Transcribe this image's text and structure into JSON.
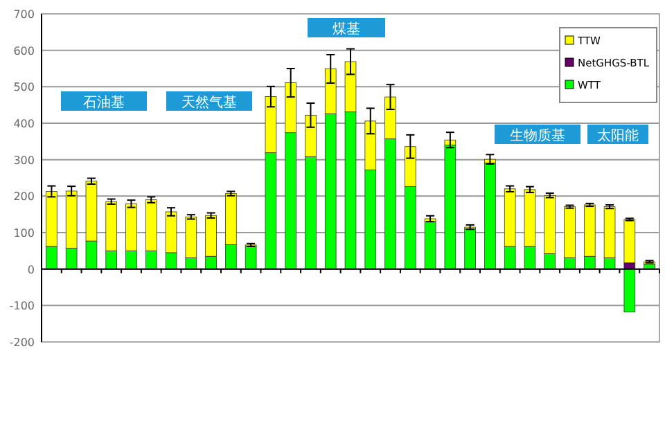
{
  "chart_data": {
    "type": "bar",
    "stacked": true,
    "categories": [
      null,
      null,
      null,
      null,
      null,
      null,
      null,
      null,
      null,
      null,
      null,
      null,
      null,
      null,
      null,
      null,
      null,
      null,
      null,
      null,
      null,
      null,
      null,
      null,
      null,
      null,
      null,
      null,
      null,
      null,
      null
    ],
    "series": [
      {
        "name": "WTT",
        "color": "#00ff00",
        "values": [
          62,
          57,
          77,
          50,
          50,
          50,
          45,
          31,
          35,
          67,
          63,
          319,
          374,
          308,
          426,
          431,
          272,
          357,
          226,
          130,
          340,
          110,
          291,
          62,
          62,
          42,
          31,
          35,
          31,
          -118,
          13
        ]
      },
      {
        "name": "NetGHGS-BTL",
        "color": "#660066",
        "values": [
          null,
          null,
          null,
          null,
          null,
          null,
          null,
          null,
          null,
          null,
          null,
          null,
          null,
          null,
          null,
          null,
          null,
          null,
          null,
          null,
          null,
          null,
          null,
          null,
          null,
          null,
          null,
          null,
          null,
          17,
          null
        ]
      },
      {
        "name": "TTW",
        "color": "#ffff00",
        "values": [
          151,
          157,
          164,
          135,
          129,
          140,
          112,
          112,
          112,
          140,
          3,
          154,
          137,
          114,
          123,
          138,
          134,
          115,
          110,
          8,
          14,
          5,
          10,
          158,
          156,
          160,
          140,
          141,
          140,
          119,
          7
        ],
        "errors": [
          15,
          13,
          8,
          7,
          10,
          8,
          11,
          6,
          7,
          6,
          4,
          28,
          39,
          33,
          39,
          35,
          35,
          34,
          32,
          8,
          21,
          6,
          13,
          8,
          8,
          6,
          4,
          4,
          5,
          3,
          3
        ]
      }
    ],
    "ylim": [
      -200,
      700
    ],
    "yticks": [
      -200,
      -100,
      0,
      100,
      200,
      300,
      400,
      500,
      600,
      700
    ],
    "grid": "y",
    "legend": "top right",
    "annotations": [
      "石油基",
      "天然气基",
      "煤基",
      "生物质基",
      "太阳能"
    ]
  }
}
